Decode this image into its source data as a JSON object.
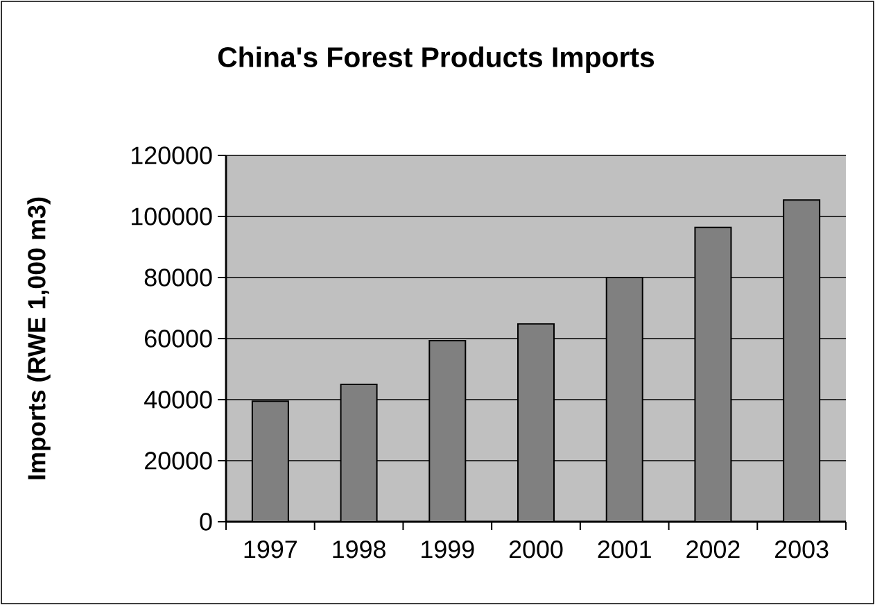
{
  "chart_data": {
    "type": "bar",
    "title": "China's Forest Products Imports",
    "ylabel": "Imports (RWE 1,000 m3)",
    "categories": [
      "1997",
      "1998",
      "1999",
      "2000",
      "2001",
      "2002",
      "2003"
    ],
    "values": [
      39500,
      45000,
      59300,
      64800,
      80000,
      96400,
      105400
    ],
    "color": "#808080",
    "ylim": [
      0,
      120000
    ],
    "yticks": [
      0,
      20000,
      40000,
      60000,
      80000,
      100000,
      120000
    ],
    "grid": "y"
  }
}
